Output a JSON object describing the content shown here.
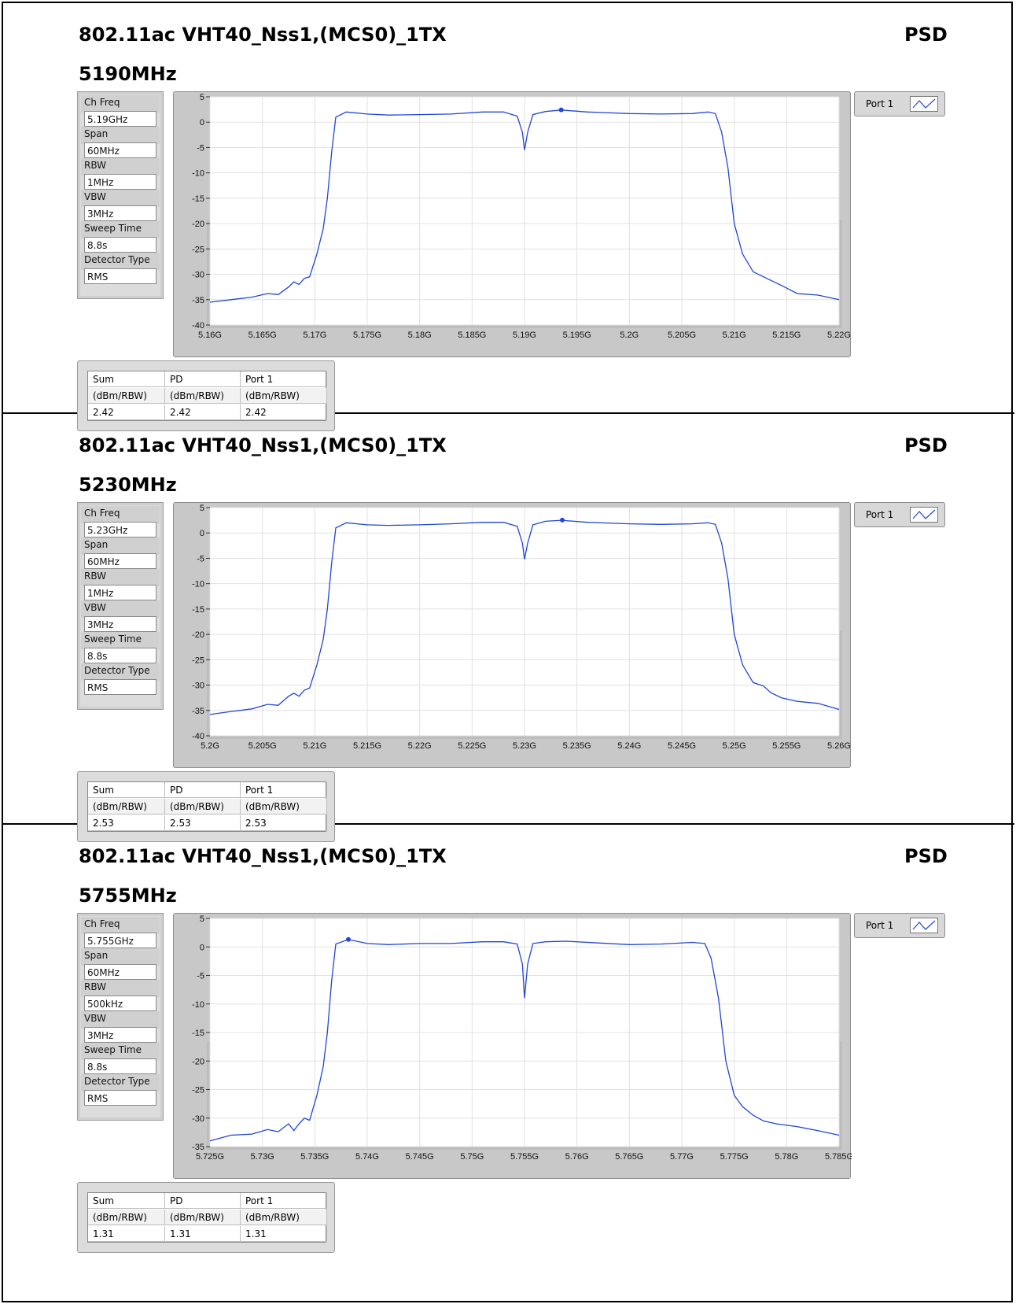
{
  "panels": [
    {
      "title": "802.11ac VHT40_Nss1,(MCS0)_1TX",
      "psd_label": "PSD",
      "freq_label": "5190MHz",
      "params": [
        {
          "label": "Ch Freq",
          "value": "5.19GHz"
        },
        {
          "label": "Span",
          "value": "60MHz"
        },
        {
          "label": "RBW",
          "value": "1MHz"
        },
        {
          "label": "VBW",
          "value": "3MHz"
        },
        {
          "label": "Sweep Time",
          "value": "8.8s"
        },
        {
          "label": "Detector Type",
          "value": "RMS"
        }
      ],
      "legend": "Port 1",
      "table": {
        "headers": [
          "Sum",
          "PD",
          "Port 1"
        ],
        "units": [
          "(dBm/RBW)",
          "(dBm/RBW)",
          "(dBm/RBW)"
        ],
        "values": [
          "2.42",
          "2.42",
          "2.42"
        ]
      },
      "line_color": "#2146d8",
      "chart_data": {
        "type": "line",
        "xlim": [
          5.16,
          5.22
        ],
        "ylim": [
          -40,
          5
        ],
        "x_ticks": [
          "5.16G",
          "5.165G",
          "5.17G",
          "5.175G",
          "5.18G",
          "5.185G",
          "5.19G",
          "5.195G",
          "5.2G",
          "5.205G",
          "5.21G",
          "5.215G",
          "5.22G"
        ],
        "y_ticks": [
          "5",
          "0",
          "-5",
          "-10",
          "-15",
          "-20",
          "-25",
          "-30",
          "-35",
          "-40"
        ],
        "grid": true,
        "series": [
          {
            "name": "Port 1",
            "x": [
              5.16,
              5.162,
              5.164,
              5.1655,
              5.1665,
              5.1675,
              5.168,
              5.1685,
              5.169,
              5.1695,
              5.1702,
              5.1708,
              5.1712,
              5.1716,
              5.172,
              5.173,
              5.175,
              5.177,
              5.18,
              5.183,
              5.186,
              5.188,
              5.1893,
              5.1898,
              5.19,
              5.1903,
              5.1908,
              5.192,
              5.1935,
              5.196,
              5.2,
              5.203,
              5.206,
              5.2075,
              5.2082,
              5.2088,
              5.2094,
              5.21,
              5.2108,
              5.2118,
              5.2128,
              5.2135,
              5.2145,
              5.216,
              5.218,
              5.22
            ],
            "y": [
              -35.5,
              -35,
              -34.5,
              -33.8,
              -34,
              -32.5,
              -31.5,
              -32,
              -30.8,
              -30.5,
              -26,
              -21,
              -15,
              -6,
              1,
              2,
              1.6,
              1.4,
              1.5,
              1.6,
              2,
              2,
              1.2,
              -2,
              -5.5,
              -2,
              1.5,
              2.1,
              2.4,
              2,
              1.7,
              1.6,
              1.7,
              2,
              1.7,
              -2,
              -9,
              -20,
              -26,
              -29.5,
              -30.5,
              -31.2,
              -32.2,
              -33.8,
              -34.1,
              -35
            ]
          }
        ],
        "marker": {
          "x": 5.1935,
          "y": 2.42
        }
      }
    },
    {
      "title": "802.11ac VHT40_Nss1,(MCS0)_1TX",
      "psd_label": "PSD",
      "freq_label": "5230MHz",
      "params": [
        {
          "label": "Ch Freq",
          "value": "5.23GHz"
        },
        {
          "label": "Span",
          "value": "60MHz"
        },
        {
          "label": "RBW",
          "value": "1MHz"
        },
        {
          "label": "VBW",
          "value": "3MHz"
        },
        {
          "label": "Sweep Time",
          "value": "8.8s"
        },
        {
          "label": "Detector Type",
          "value": "RMS"
        }
      ],
      "legend": "Port 1",
      "table": {
        "headers": [
          "Sum",
          "PD",
          "Port 1"
        ],
        "units": [
          "(dBm/RBW)",
          "(dBm/RBW)",
          "(dBm/RBW)"
        ],
        "values": [
          "2.53",
          "2.53",
          "2.53"
        ]
      },
      "line_color": "#2146d8",
      "chart_data": {
        "type": "line",
        "xlim": [
          5.2,
          5.26
        ],
        "ylim": [
          -40,
          5
        ],
        "x_ticks": [
          "5.2G",
          "5.205G",
          "5.21G",
          "5.215G",
          "5.22G",
          "5.225G",
          "5.23G",
          "5.235G",
          "5.24G",
          "5.245G",
          "5.25G",
          "5.255G",
          "5.26G"
        ],
        "y_ticks": [
          "5",
          "0",
          "-5",
          "-10",
          "-15",
          "-20",
          "-25",
          "-30",
          "-35",
          "-40"
        ],
        "grid": true,
        "series": [
          {
            "name": "Port 1",
            "x": [
              5.2,
              5.202,
              5.204,
              5.2055,
              5.2065,
              5.2075,
              5.208,
              5.2085,
              5.209,
              5.2095,
              5.2102,
              5.2108,
              5.2112,
              5.2116,
              5.212,
              5.213,
              5.215,
              5.217,
              5.22,
              5.223,
              5.226,
              5.228,
              5.2293,
              5.2298,
              5.23,
              5.2303,
              5.2308,
              5.232,
              5.2335,
              5.236,
              5.24,
              5.243,
              5.246,
              5.2475,
              5.2482,
              5.2488,
              5.2494,
              5.25,
              5.2508,
              5.2518,
              5.2528,
              5.2535,
              5.2545,
              5.256,
              5.258,
              5.26
            ],
            "y": [
              -35.8,
              -35.2,
              -34.7,
              -33.8,
              -34,
              -32.2,
              -31.6,
              -32.2,
              -31,
              -30.6,
              -26,
              -21,
              -15,
              -6,
              1,
              2,
              1.6,
              1.5,
              1.6,
              1.8,
              2.1,
              2.1,
              1.3,
              -2,
              -5.2,
              -2,
              1.6,
              2.3,
              2.5,
              2.1,
              1.8,
              1.7,
              1.8,
              2,
              1.7,
              -2,
              -9,
              -20,
              -26,
              -29.5,
              -30.2,
              -31.5,
              -32.5,
              -33.2,
              -33.6,
              -34.8
            ]
          }
        ],
        "marker": {
          "x": 5.2336,
          "y": 2.53
        }
      }
    },
    {
      "title": "802.11ac VHT40_Nss1,(MCS0)_1TX",
      "psd_label": "PSD",
      "freq_label": "5755MHz",
      "params": [
        {
          "label": "Ch Freq",
          "value": "5.755GHz"
        },
        {
          "label": "Span",
          "value": "60MHz"
        },
        {
          "label": "RBW",
          "value": "500kHz"
        },
        {
          "label": "VBW",
          "value": "3MHz"
        },
        {
          "label": "Sweep Time",
          "value": "8.8s"
        },
        {
          "label": "Detector Type",
          "value": "RMS"
        }
      ],
      "legend": "Port 1",
      "table": {
        "headers": [
          "Sum",
          "PD",
          "Port 1"
        ],
        "units": [
          "(dBm/RBW)",
          "(dBm/RBW)",
          "(dBm/RBW)"
        ],
        "values": [
          "1.31",
          "1.31",
          "1.31"
        ]
      },
      "line_color": "#2146d8",
      "chart_data": {
        "type": "line",
        "xlim": [
          5.725,
          5.785
        ],
        "ylim": [
          -35,
          5
        ],
        "x_ticks": [
          "5.725G",
          "5.73G",
          "5.735G",
          "5.74G",
          "5.745G",
          "5.75G",
          "5.755G",
          "5.76G",
          "5.765G",
          "5.77G",
          "5.775G",
          "5.78G",
          "5.785G"
        ],
        "y_ticks": [
          "5",
          "0",
          "-5",
          "-10",
          "-15",
          "-20",
          "-25",
          "-30",
          "-35"
        ],
        "grid": true,
        "series": [
          {
            "name": "Port 1",
            "x": [
              5.725,
              5.727,
              5.729,
              5.7305,
              5.7315,
              5.7325,
              5.733,
              5.7335,
              5.734,
              5.7345,
              5.7352,
              5.7358,
              5.7362,
              5.7366,
              5.737,
              5.7382,
              5.74,
              5.742,
              5.745,
              5.748,
              5.751,
              5.753,
              5.7543,
              5.7548,
              5.755,
              5.7553,
              5.7558,
              5.757,
              5.759,
              5.762,
              5.765,
              5.768,
              5.771,
              5.7722,
              5.7728,
              5.7735,
              5.7742,
              5.775,
              5.7758,
              5.7768,
              5.7778,
              5.779,
              5.781,
              5.783,
              5.785
            ],
            "y": [
              -34,
              -33,
              -32.8,
              -32,
              -32.4,
              -31,
              -32.2,
              -31,
              -30,
              -30.4,
              -26,
              -21,
              -15,
              -6,
              0.5,
              1.3,
              0.6,
              0.4,
              0.6,
              0.6,
              0.9,
              0.9,
              0.5,
              -3,
              -9,
              -3,
              0.6,
              0.9,
              1,
              0.7,
              0.4,
              0.5,
              0.8,
              0.6,
              -2,
              -9,
              -20,
              -26,
              -28,
              -29.5,
              -30.5,
              -31,
              -31.5,
              -32.2,
              -33
            ]
          }
        ],
        "marker": {
          "x": 5.7382,
          "y": 1.31
        }
      }
    }
  ]
}
